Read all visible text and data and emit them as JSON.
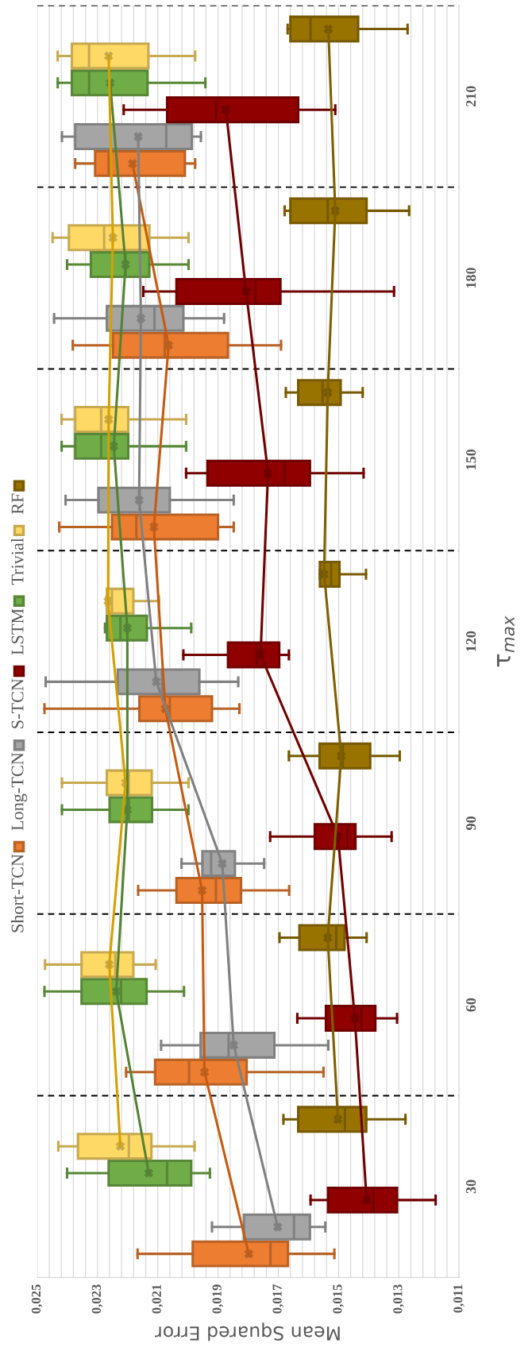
{
  "chart_data": {
    "type": "box",
    "orientation": "horizontal",
    "categories": [
      "210",
      "180",
      "150",
      "120",
      "90",
      "60",
      "30"
    ],
    "xlabel": "Mean Squared Error",
    "ylabel": "τ$_{max}$",
    "xlim": [
      0.025,
      0.011
    ],
    "xticks": [
      {
        "value": 0.025,
        "label": "0,025"
      },
      {
        "value": 0.0246,
        "label": null
      },
      {
        "value": 0.0242,
        "label": null
      },
      {
        "value": 0.0238,
        "label": null
      },
      {
        "value": 0.0234,
        "label": null
      },
      {
        "value": 0.023,
        "label": "0,023"
      },
      {
        "value": 0.0226,
        "label": null
      },
      {
        "value": 0.0222,
        "label": null
      },
      {
        "value": 0.0218,
        "label": null
      },
      {
        "value": 0.0214,
        "label": null
      },
      {
        "value": 0.021,
        "label": "0,021"
      },
      {
        "value": 0.0206,
        "label": null
      },
      {
        "value": 0.0202,
        "label": null
      },
      {
        "value": 0.0198,
        "label": null
      },
      {
        "value": 0.0194,
        "label": null
      },
      {
        "value": 0.019,
        "label": "0,019"
      },
      {
        "value": 0.0186,
        "label": null
      },
      {
        "value": 0.0182,
        "label": null
      },
      {
        "value": 0.0178,
        "label": null
      },
      {
        "value": 0.0174,
        "label": null
      },
      {
        "value": 0.017,
        "label": "0,017"
      },
      {
        "value": 0.0166,
        "label": null
      },
      {
        "value": 0.0162,
        "label": null
      },
      {
        "value": 0.0158,
        "label": null
      },
      {
        "value": 0.0154,
        "label": null
      },
      {
        "value": 0.015,
        "label": "0,015"
      },
      {
        "value": 0.0146,
        "label": null
      },
      {
        "value": 0.0142,
        "label": null
      },
      {
        "value": 0.0138,
        "label": null
      },
      {
        "value": 0.0134,
        "label": null
      },
      {
        "value": 0.013,
        "label": "0,013"
      },
      {
        "value": 0.0126,
        "label": null
      },
      {
        "value": 0.0122,
        "label": null
      },
      {
        "value": 0.0118,
        "label": null
      },
      {
        "value": 0.0114,
        "label": null
      },
      {
        "value": 0.011,
        "label": "0,011"
      }
    ],
    "grid": true,
    "legend": "left",
    "marker": "cross",
    "line_style": "solid",
    "series": [
      {
        "name": "Short-TCN",
        "color": "#ed7d31",
        "boxes": [
          {
            "low": 0.01976,
            "q1": 0.0201,
            "median": 0.02263,
            "q3": 0.02308,
            "high": 0.02374,
            "mean": 0.02184
          },
          {
            "low": 0.01691,
            "q1": 0.01867,
            "median": 0.02077,
            "q3": 0.02249,
            "high": 0.02382,
            "mean": 0.02064
          },
          {
            "low": 0.01848,
            "q1": 0.019,
            "median": 0.02171,
            "q3": 0.02252,
            "high": 0.02427,
            "mean": 0.02113
          },
          {
            "low": 0.01829,
            "q1": 0.0192,
            "median": 0.0206,
            "q3": 0.02161,
            "high": 0.02476,
            "mean": 0.02075
          },
          {
            "low": 0.01664,
            "q1": 0.01824,
            "median": 0.01907,
            "q3": 0.02038,
            "high": 0.02165,
            "mean": 0.01953
          },
          {
            "low": 0.0155,
            "q1": 0.01805,
            "median": 0.01996,
            "q3": 0.02109,
            "high": 0.02205,
            "mean": 0.01945
          },
          {
            "low": 0.01514,
            "q1": 0.01668,
            "median": 0.01726,
            "q3": 0.01984,
            "high": 0.02167,
            "mean": 0.01798
          }
        ]
      },
      {
        "name": "Long-TCN",
        "color": "#a5a5a5",
        "boxes": [
          {
            "low": 0.01957,
            "q1": 0.01987,
            "median": 0.02072,
            "q3": 0.02374,
            "high": 0.02418,
            "mean": 0.02165
          },
          {
            "low": 0.0188,
            "q1": 0.02015,
            "median": 0.02111,
            "q3": 0.02269,
            "high": 0.02444,
            "mean": 0.02156
          },
          {
            "low": 0.01848,
            "q1": 0.0206,
            "median": 0.0216,
            "q3": 0.02297,
            "high": 0.02406,
            "mean": 0.02162
          },
          {
            "low": 0.01833,
            "q1": 0.01962,
            "median": 0.02086,
            "q3": 0.02233,
            "high": 0.02472,
            "mean": 0.02105
          },
          {
            "low": 0.01747,
            "q1": 0.01844,
            "median": 0.01923,
            "q3": 0.01952,
            "high": 0.02021,
            "mean": 0.01886
          },
          {
            "low": 0.01534,
            "q1": 0.01713,
            "median": 0.01865,
            "q3": 0.01958,
            "high": 0.02089,
            "mean": 0.01848
          },
          {
            "low": 0.01544,
            "q1": 0.01595,
            "median": 0.01648,
            "q3": 0.01814,
            "high": 0.0192,
            "mean": 0.01702
          }
        ]
      },
      {
        "name": "S-TCN",
        "color": "#900000",
        "boxes": [
          {
            "low": 0.01511,
            "q1": 0.01634,
            "median": 0.01906,
            "q3": 0.02069,
            "high": 0.02213,
            "mean": 0.01874
          },
          {
            "low": 0.01316,
            "q1": 0.01693,
            "median": 0.01776,
            "q3": 0.02038,
            "high": 0.02148,
            "mean": 0.01807
          },
          {
            "low": 0.01417,
            "q1": 0.01595,
            "median": 0.01679,
            "q3": 0.01935,
            "high": 0.02006,
            "mean": 0.01734
          },
          {
            "low": 0.01665,
            "q1": 0.01697,
            "median": 0.01771,
            "q3": 0.01867,
            "high": 0.02015,
            "mean": 0.01759
          },
          {
            "low": 0.01324,
            "q1": 0.01444,
            "median": 0.01471,
            "q3": 0.01579,
            "high": 0.01727,
            "mean": 0.01502
          },
          {
            "low": 0.01306,
            "q1": 0.01378,
            "median": 0.01424,
            "q3": 0.01542,
            "high": 0.01637,
            "mean": 0.01446
          },
          {
            "low": 0.01178,
            "q1": 0.01306,
            "median": 0.01384,
            "q3": 0.01535,
            "high": 0.01593,
            "mean": 0.01407
          }
        ]
      },
      {
        "name": "LSTM",
        "color": "#70ad47",
        "boxes": [
          {
            "low": 0.01942,
            "q1": 0.02134,
            "median": 0.02328,
            "q3": 0.02385,
            "high": 0.02432,
            "mean": 0.02258
          },
          {
            "low": 0.01998,
            "q1": 0.02128,
            "median": 0.02207,
            "q3": 0.02322,
            "high": 0.02401,
            "mean": 0.02207
          },
          {
            "low": 0.02006,
            "q1": 0.02198,
            "median": 0.02288,
            "q3": 0.02374,
            "high": 0.02419,
            "mean": 0.02246
          },
          {
            "low": 0.01989,
            "q1": 0.02136,
            "median": 0.02224,
            "q3": 0.02269,
            "high": 0.02275,
            "mean": 0.02201
          },
          {
            "low": 0.01998,
            "q1": 0.02119,
            "median": 0.02196,
            "q3": 0.0226,
            "high": 0.02418,
            "mean": 0.02201
          },
          {
            "low": 0.02013,
            "q1": 0.02137,
            "median": 0.02222,
            "q3": 0.02353,
            "high": 0.02476,
            "mean": 0.02238
          },
          {
            "low": 0.01927,
            "q1": 0.01989,
            "median": 0.02069,
            "q3": 0.02263,
            "high": 0.02401,
            "mean": 0.0213
          }
        ]
      },
      {
        "name": "Trivial",
        "color": "#ffd966",
        "boxes": [
          {
            "low": 0.01976,
            "q1": 0.02131,
            "median": 0.02328,
            "q3": 0.02385,
            "high": 0.02432,
            "mean": 0.02263
          },
          {
            "low": 0.01998,
            "q1": 0.02128,
            "median": 0.02278,
            "q3": 0.02395,
            "high": 0.02449,
            "mean": 0.02249
          },
          {
            "low": 0.02006,
            "q1": 0.02198,
            "median": 0.02288,
            "q3": 0.02374,
            "high": 0.02419,
            "mean": 0.02263
          },
          {
            "low": 0.02096,
            "q1": 0.02181,
            "median": 0.02252,
            "q3": 0.02269,
            "high": 0.02271,
            "mean": 0.02265
          },
          {
            "low": 0.01998,
            "q1": 0.0212,
            "median": 0.02196,
            "q3": 0.02269,
            "high": 0.02418,
            "mean": 0.02207
          },
          {
            "low": 0.02107,
            "q1": 0.02181,
            "median": 0.02241,
            "q3": 0.02353,
            "high": 0.02474,
            "mean": 0.02261
          },
          {
            "low": 0.01978,
            "q1": 0.02121,
            "median": 0.02196,
            "q3": 0.02365,
            "high": 0.0243,
            "mean": 0.02224
          }
        ]
      },
      {
        "name": "RF",
        "color": "#997300",
        "boxes": [
          {
            "low": 0.01271,
            "q1": 0.01435,
            "median": 0.01593,
            "q3": 0.0166,
            "high": 0.01669,
            "mean": 0.01534
          },
          {
            "low": 0.01266,
            "q1": 0.01407,
            "median": 0.01536,
            "q3": 0.0166,
            "high": 0.01679,
            "mean": 0.01511
          },
          {
            "low": 0.0142,
            "q1": 0.01493,
            "median": 0.01553,
            "q3": 0.01634,
            "high": 0.01675,
            "mean": 0.01536
          },
          {
            "low": 0.01409,
            "q1": 0.01497,
            "median": 0.01525,
            "q3": 0.01562,
            "high": 0.01562,
            "mean": 0.01548
          },
          {
            "low": 0.01297,
            "q1": 0.01395,
            "median": 0.01486,
            "q3": 0.01563,
            "high": 0.01665,
            "mean": 0.01491
          },
          {
            "low": 0.01407,
            "q1": 0.0148,
            "median": 0.01508,
            "q3": 0.0163,
            "high": 0.01696,
            "mean": 0.01536
          },
          {
            "low": 0.01278,
            "q1": 0.01408,
            "median": 0.01479,
            "q3": 0.01634,
            "high": 0.01683,
            "mean": 0.01502
          }
        ]
      },
      {
        "type": "line",
        "marker": "none",
        "color": "#c55a11",
        "values": [
          0.02184,
          0.02064,
          0.02113,
          0.02075,
          0.01953,
          0.01945,
          0.01798
        ]
      },
      {
        "type": "line",
        "marker": "none",
        "color": "#808080",
        "values": [
          0.02165,
          0.02156,
          0.02162,
          0.02105,
          0.01886,
          0.01848,
          0.01702
        ]
      },
      {
        "type": "line",
        "marker": "none",
        "color": "#700000",
        "values": [
          0.01874,
          0.01807,
          0.01734,
          0.01759,
          0.01502,
          0.01446,
          0.01407
        ]
      },
      {
        "type": "line",
        "marker": "none",
        "color": "#548235",
        "values": [
          0.02258,
          0.02207,
          0.02246,
          0.02201,
          0.02201,
          0.02238,
          0.0213
        ]
      },
      {
        "type": "line",
        "marker": "none",
        "color": "#d4a000",
        "values": [
          0.02263,
          0.02249,
          0.02263,
          0.02265,
          0.02207,
          0.02261,
          0.02224
        ]
      },
      {
        "type": "line",
        "marker": "none",
        "color": "#7f6000",
        "values": [
          0.01534,
          0.01511,
          0.01536,
          0.01548,
          0.01491,
          0.01536,
          0.01502
        ]
      }
    ]
  }
}
